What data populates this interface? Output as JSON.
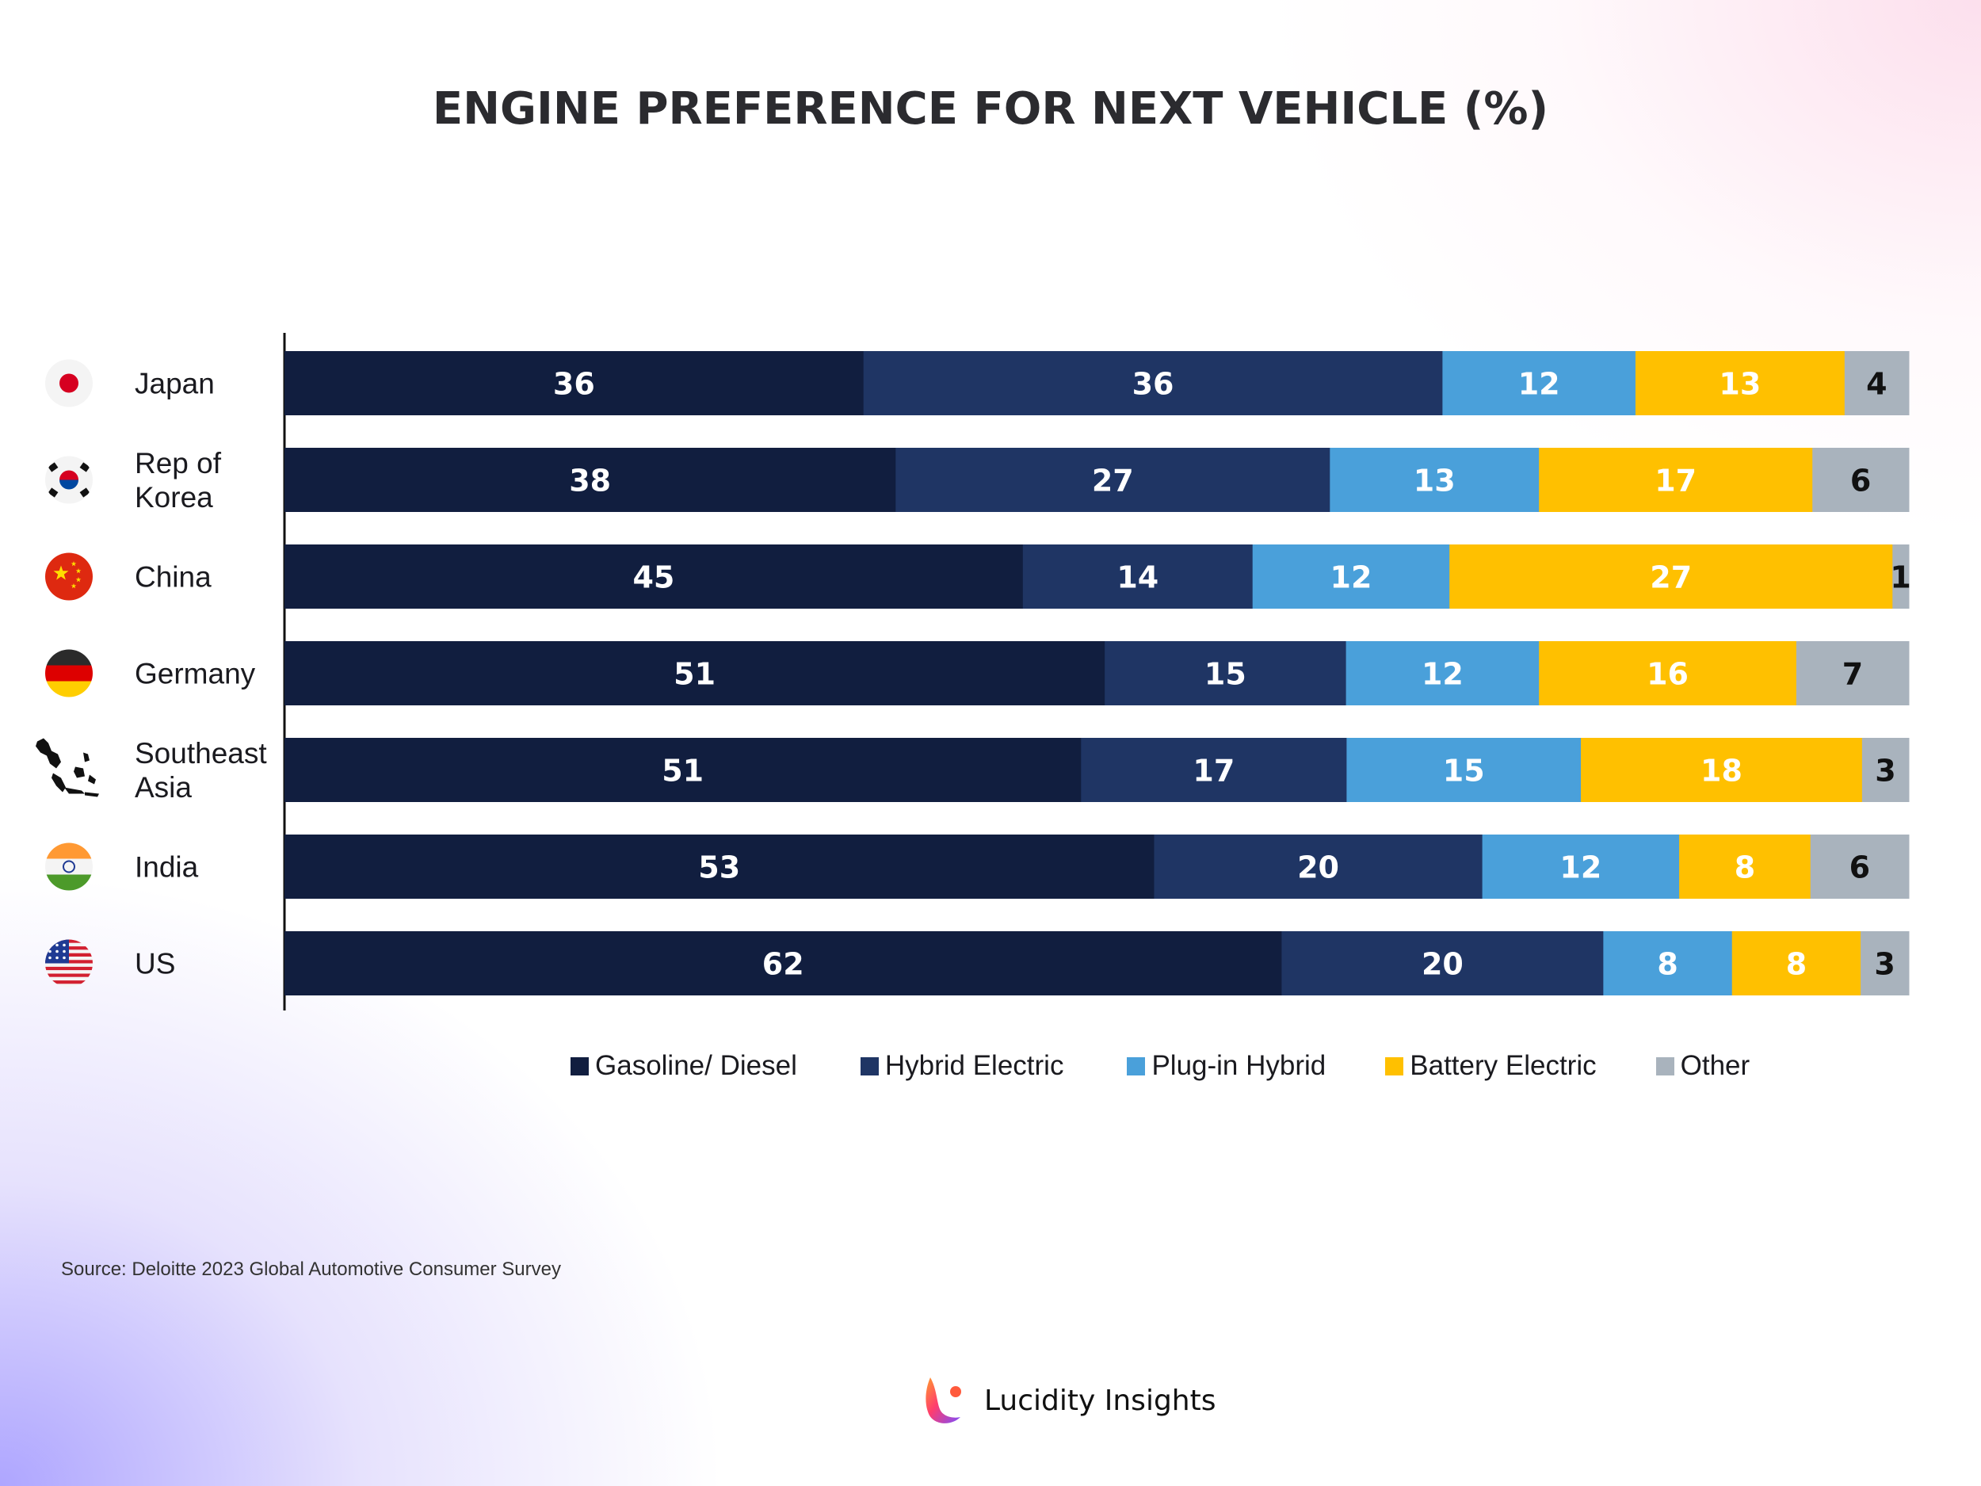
{
  "title": "ENGINE PREFERENCE FOR NEXT VEHICLE (%)",
  "source": "Source: Deloitte 2023 Global Automotive Consumer Survey",
  "brand": "Lucidity Insights",
  "colors": {
    "gasoline": "#111e3f",
    "hybrid": "#1f3564",
    "plugin": "#4aa0da",
    "battery": "#ffc000",
    "other": "#a9b3bd"
  },
  "chart_data": {
    "type": "bar",
    "orientation": "horizontal",
    "stacked": true,
    "title": "ENGINE PREFERENCE FOR NEXT VEHICLE (%)",
    "xlim": [
      0,
      100
    ],
    "grid": false,
    "legend_position": "bottom",
    "categories": [
      {
        "label": [
          "Japan"
        ],
        "flag": "japan-flag-icon"
      },
      {
        "label": [
          "Rep of",
          "Korea"
        ],
        "flag": "korea-flag-icon"
      },
      {
        "label": [
          "China"
        ],
        "flag": "china-flag-icon"
      },
      {
        "label": [
          "Germany"
        ],
        "flag": "germany-flag-icon"
      },
      {
        "label": [
          "Southeast",
          "Asia"
        ],
        "flag": "southeast-asia-map-icon"
      },
      {
        "label": [
          "India"
        ],
        "flag": "india-flag-icon"
      },
      {
        "label": [
          "US"
        ],
        "flag": "us-flag-icon"
      }
    ],
    "series": [
      {
        "name": "Gasoline/ Diesel",
        "color": "#111e3f",
        "label_color": "#ffffff",
        "values": [
          36,
          38,
          45,
          51,
          51,
          53,
          62
        ]
      },
      {
        "name": "Hybrid Electric",
        "color": "#1f3564",
        "label_color": "#ffffff",
        "values": [
          36,
          27,
          14,
          15,
          17,
          20,
          20
        ]
      },
      {
        "name": "Plug-in Hybrid",
        "color": "#4aa0da",
        "label_color": "#ffffff",
        "values": [
          12,
          13,
          12,
          12,
          15,
          12,
          8
        ]
      },
      {
        "name": "Battery Electric",
        "color": "#ffc000",
        "label_color": "#ffffff",
        "values": [
          13,
          17,
          27,
          16,
          18,
          8,
          8
        ]
      },
      {
        "name": "Other",
        "color": "#a9b3bd",
        "label_color": "#111111",
        "values": [
          4,
          6,
          1,
          7,
          3,
          6,
          3
        ]
      }
    ]
  }
}
